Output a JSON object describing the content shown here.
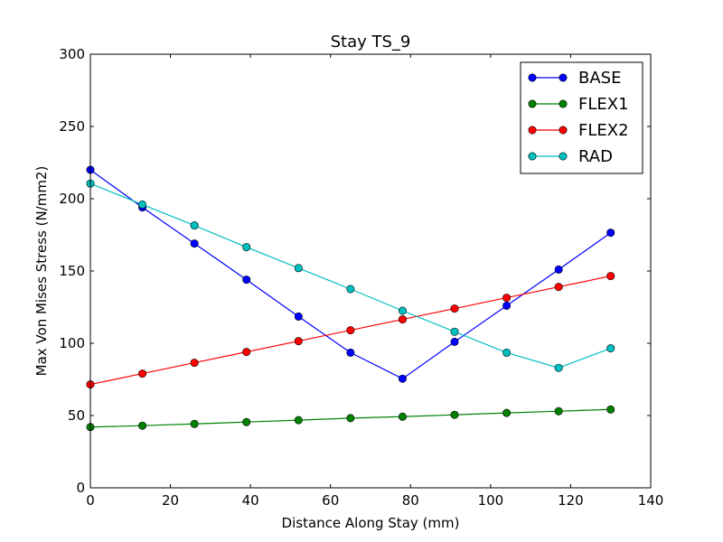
{
  "chart_data": {
    "type": "line",
    "title": "Stay TS_9",
    "xlabel": "Distance Along Stay (mm)",
    "ylabel": "Max Von Mises Stress (N/mm2)",
    "xlim": [
      0,
      140
    ],
    "ylim": [
      0,
      300
    ],
    "xticks": [
      "0",
      "20",
      "40",
      "60",
      "80",
      "100",
      "120",
      "140"
    ],
    "yticks": [
      "0",
      "50",
      "100",
      "150",
      "200",
      "250",
      "300"
    ],
    "grid": false,
    "legend_position": "top-right",
    "x": [
      0,
      13,
      26,
      39,
      52,
      65,
      78,
      91,
      104,
      117,
      130
    ],
    "series": [
      {
        "name": "BASE",
        "color": "#0000ff",
        "values": [
          220,
          194,
          169,
          144,
          118.5,
          93.5,
          75.5,
          101,
          126,
          151,
          176.5
        ]
      },
      {
        "name": "FLEX1",
        "color": "#008000",
        "values": [
          42,
          43,
          44.2,
          45.5,
          46.8,
          48.2,
          49.2,
          50.5,
          51.8,
          53,
          54.2
        ]
      },
      {
        "name": "FLEX2",
        "color": "#ff0000",
        "values": [
          71.5,
          79,
          86.5,
          94,
          101.5,
          109,
          116.5,
          124,
          131.5,
          139,
          146.5
        ]
      },
      {
        "name": "RAD",
        "color": "#00bfbf",
        "values": [
          210.5,
          196,
          181.5,
          166.5,
          152,
          137.5,
          122.5,
          108,
          93.5,
          83,
          96.5
        ]
      }
    ]
  }
}
